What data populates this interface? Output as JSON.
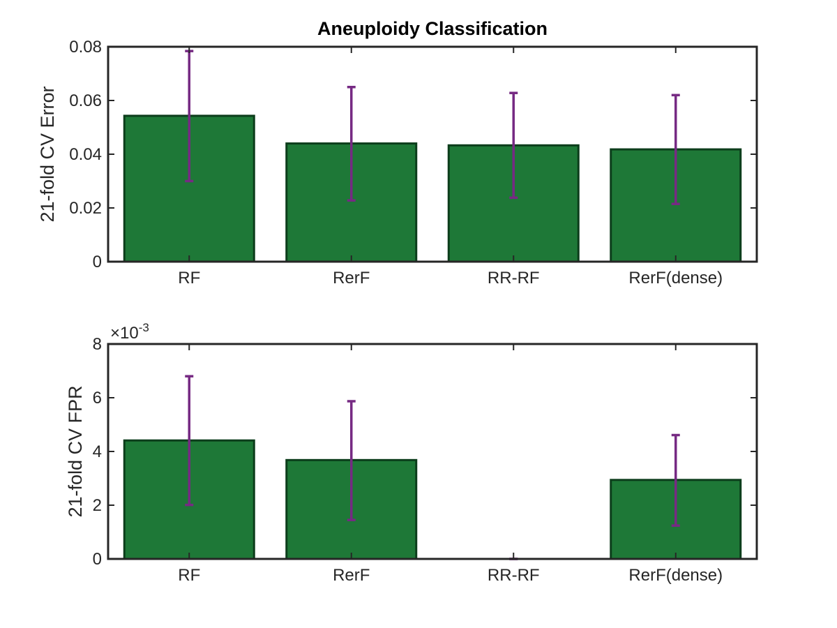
{
  "figure": {
    "title": "Aneuploidy Classification"
  },
  "colors": {
    "bar_fill": "#1e7837",
    "bar_edge": "#0c3d1b",
    "error_bar": "#762a83",
    "axis": "#262626"
  },
  "chart_data": [
    {
      "type": "bar",
      "title": "Aneuploidy Classification",
      "xlabel": "",
      "ylabel": "21-fold CV Error",
      "categories": [
        "RF",
        "RerF",
        "RR-RF",
        "RerF(dense)"
      ],
      "values": [
        0.0543,
        0.044,
        0.0433,
        0.0418
      ],
      "error_low": [
        0.03,
        0.0228,
        0.0238,
        0.0215
      ],
      "error_high": [
        0.0784,
        0.065,
        0.0628,
        0.062
      ],
      "ylim": [
        0,
        0.08
      ],
      "yticks": [
        0,
        0.02,
        0.04,
        0.06,
        0.08
      ],
      "ytick_labels": [
        "0",
        "0.02",
        "0.04",
        "0.06",
        "0.08"
      ],
      "y_exponent_label": "",
      "grid": false,
      "legend": "none"
    },
    {
      "type": "bar",
      "title": "",
      "xlabel": "",
      "ylabel": "21-fold CV FPR",
      "categories": [
        "RF",
        "RerF",
        "RR-RF",
        "RerF(dense)"
      ],
      "values": [
        0.00441,
        0.00368,
        0.0,
        0.00294
      ],
      "error_low": [
        0.00201,
        0.00145,
        0.0,
        0.00124
      ],
      "error_high": [
        0.0068,
        0.00587,
        0.0,
        0.00461
      ],
      "ylim": [
        0,
        0.008
      ],
      "yticks": [
        0,
        0.002,
        0.004,
        0.006,
        0.008
      ],
      "ytick_labels": [
        "0",
        "2",
        "4",
        "6",
        "8"
      ],
      "y_exponent_label": "×10-3",
      "grid": false,
      "legend": "none"
    }
  ]
}
